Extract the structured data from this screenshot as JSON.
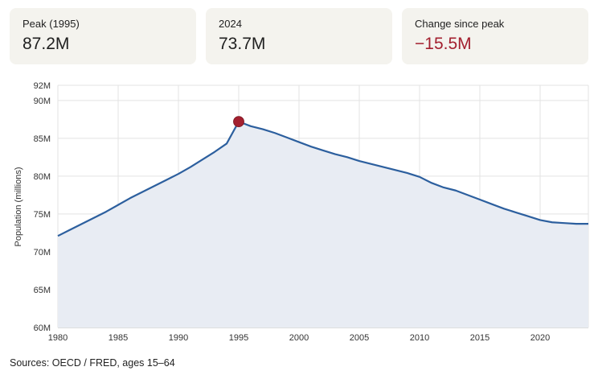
{
  "stats": [
    {
      "label": "Peak (1995)",
      "value": "87.2M",
      "tone": "neutral"
    },
    {
      "label": "2024",
      "value": "73.7M",
      "tone": "neutral"
    },
    {
      "label": "Change since peak",
      "value": "−15.5M",
      "tone": "negative"
    }
  ],
  "colors": {
    "line": "#2c5f9e",
    "area": "#e8ecf3",
    "peak_marker": "#a3202f",
    "grid": "#e3e3e3",
    "card_bg": "#f4f3ee"
  },
  "source": "Sources: OECD / FRED, ages 15–64",
  "chart_data": {
    "type": "area",
    "ylabel": "Population (millions)",
    "xlim": [
      1980,
      2024
    ],
    "ylim": [
      60,
      92
    ],
    "x_ticks": [
      1980,
      1985,
      1990,
      1995,
      2000,
      2005,
      2010,
      2015,
      2020
    ],
    "x_tick_labels": [
      "1980",
      "1985",
      "1990",
      "1995",
      "2000",
      "2005",
      "2010",
      "2015",
      "2020"
    ],
    "y_ticks": [
      60,
      65,
      70,
      75,
      80,
      85,
      90,
      92
    ],
    "y_tick_labels": [
      "60M",
      "65M",
      "70M",
      "75M",
      "80M",
      "85M",
      "90M",
      "92M"
    ],
    "grid": true,
    "peak": {
      "x": 1995,
      "y": 87.2
    },
    "x": [
      1980,
      1981,
      1982,
      1983,
      1984,
      1985,
      1986,
      1987,
      1988,
      1989,
      1990,
      1991,
      1992,
      1993,
      1994,
      1995,
      1996,
      1997,
      1998,
      1999,
      2000,
      2001,
      2002,
      2003,
      2004,
      2005,
      2006,
      2007,
      2008,
      2009,
      2010,
      2011,
      2012,
      2013,
      2014,
      2015,
      2016,
      2017,
      2018,
      2019,
      2020,
      2021,
      2022,
      2023,
      2024
    ],
    "values": [
      72.1,
      72.9,
      73.7,
      74.5,
      75.3,
      76.2,
      77.1,
      77.9,
      78.7,
      79.5,
      80.3,
      81.2,
      82.2,
      83.2,
      84.3,
      87.2,
      86.6,
      86.2,
      85.7,
      85.1,
      84.5,
      83.9,
      83.4,
      82.9,
      82.5,
      82.0,
      81.6,
      81.2,
      80.8,
      80.4,
      79.9,
      79.1,
      78.5,
      78.1,
      77.5,
      76.9,
      76.3,
      75.7,
      75.2,
      74.7,
      74.2,
      73.9,
      73.8,
      73.7,
      73.7
    ]
  }
}
